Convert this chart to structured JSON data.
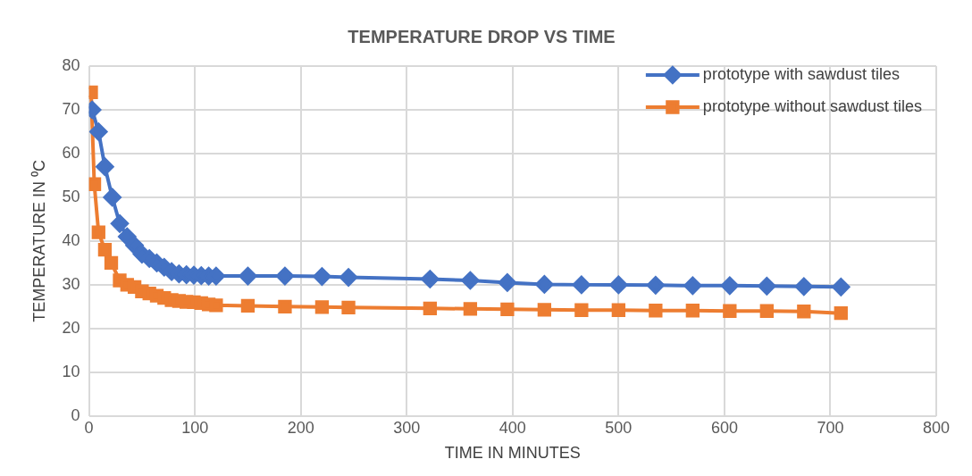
{
  "chart_data": {
    "type": "line",
    "title": "TEMPERATURE DROP VS TIME",
    "xlabel": "TIME IN MINUTES",
    "ylabel": "TEMPERATURE IN ⁰C",
    "xlim": [
      0,
      800
    ],
    "xticks": [
      0,
      100,
      200,
      300,
      400,
      500,
      600,
      700,
      800
    ],
    "ylim": [
      0,
      80
    ],
    "yticks": [
      0,
      10,
      20,
      30,
      40,
      50,
      60,
      70,
      80
    ],
    "grid": true,
    "legend": "top right",
    "line_style": "solid",
    "series": [
      {
        "name": "prototype with sawdust tiles",
        "color": "#4472c4",
        "marker": "diamond",
        "x": [
          3,
          9,
          15,
          22,
          29,
          36,
          43,
          50,
          57,
          64,
          71,
          78,
          85,
          92,
          99,
          106,
          113,
          120,
          150,
          185,
          220,
          245,
          322,
          360,
          395,
          430,
          465,
          500,
          535,
          570,
          605,
          640,
          675,
          710
        ],
        "values": [
          70,
          65,
          57,
          50,
          44,
          41,
          39,
          37,
          36,
          35,
          34,
          33,
          32.5,
          32.3,
          32.2,
          32.1,
          32,
          32,
          32,
          32,
          31.9,
          31.7,
          31.3,
          31,
          30.5,
          30.1,
          30,
          30,
          29.9,
          29.8,
          29.8,
          29.7,
          29.6,
          29.5
        ]
      },
      {
        "name": "prototype without sawdust tiles",
        "color": "#ed7d31",
        "marker": "square",
        "x": [
          2,
          5,
          9,
          15,
          21,
          29,
          36,
          43,
          50,
          57,
          64,
          71,
          78,
          85,
          92,
          99,
          106,
          113,
          120,
          150,
          185,
          220,
          245,
          322,
          360,
          395,
          430,
          465,
          500,
          535,
          570,
          605,
          640,
          675,
          710
        ],
        "values": [
          74,
          53,
          42,
          38,
          35,
          31,
          30,
          29.5,
          28.5,
          28,
          27.5,
          27,
          26.5,
          26.3,
          26.1,
          26,
          25.8,
          25.5,
          25.3,
          25.2,
          25,
          24.9,
          24.8,
          24.6,
          24.5,
          24.4,
          24.3,
          24.2,
          24.2,
          24.1,
          24.1,
          24,
          24,
          23.9,
          23.5
        ]
      }
    ]
  }
}
